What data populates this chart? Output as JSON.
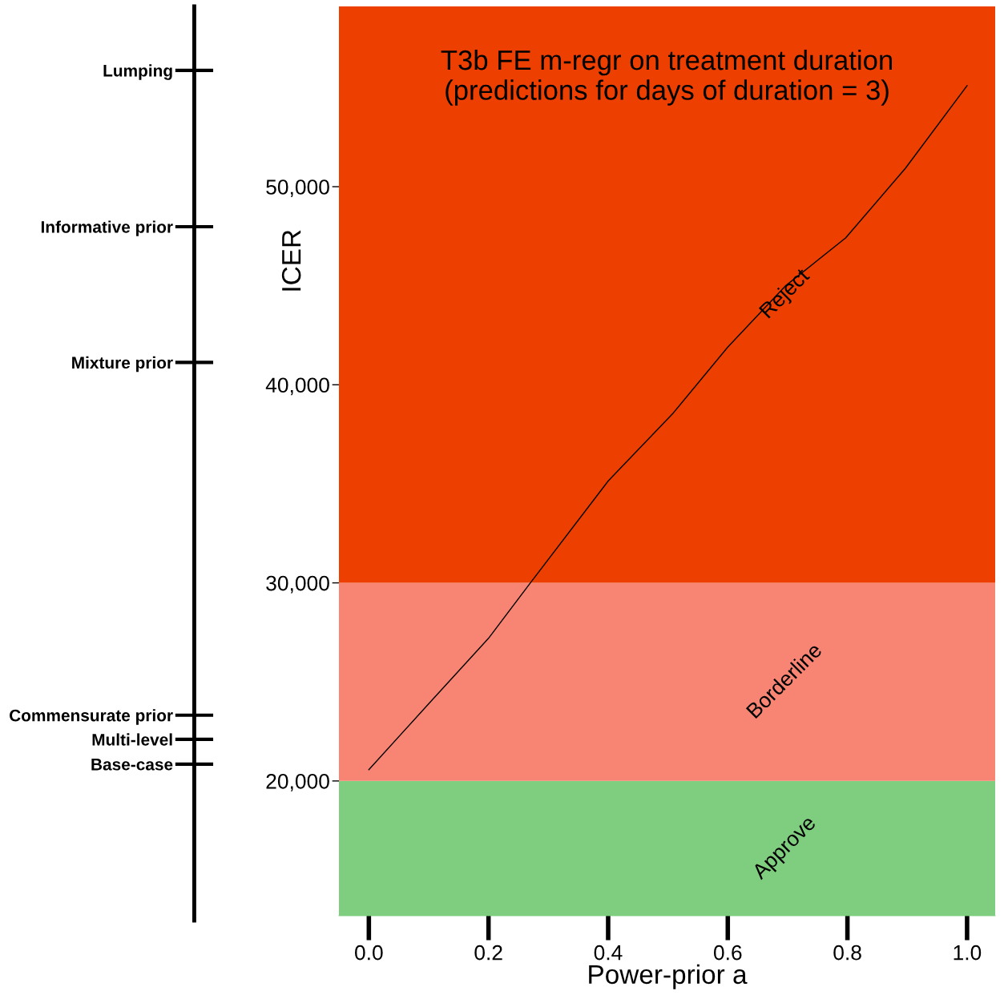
{
  "chart_data": {
    "type": "line",
    "title": "T3b FE m-regr on treatment duration\n(predictions for days of duration = 3)",
    "xlabel": "Power-prior a",
    "ylabel": "ICER",
    "x": [
      0,
      0.1,
      0.2,
      0.27,
      0.4,
      0.509,
      0.6,
      0.696,
      0.797,
      0.897,
      1.0
    ],
    "series": [
      {
        "color": "#000000",
        "values": [
          20570,
          23900,
          27200,
          30000,
          35140,
          38580,
          41900,
          44980,
          47410,
          50930,
          55100
        ]
      }
    ],
    "xlim": [
      -0.05,
      1.047
    ],
    "xticks": [
      {
        "value": 0,
        "label": "0.0"
      },
      0.2,
      0.4,
      0.6,
      0.8,
      {
        "value": 1,
        "label": "1.0"
      }
    ],
    "ylim": [
      13200,
      59100
    ],
    "yticks": [
      {
        "value": 20000,
        "label": "20,000"
      },
      {
        "value": 30000,
        "label": "30,000"
      },
      {
        "value": 40000,
        "label": "40,000"
      },
      {
        "value": 50000,
        "label": "50,000"
      }
    ],
    "ref_lines": [
      {
        "axis": "y",
        "value": 55870,
        "label": "Lumping"
      },
      {
        "axis": "y",
        "value": 47980,
        "label": "Informative prior"
      },
      {
        "axis": "y",
        "value": 41130,
        "label": "Mixture prior"
      },
      {
        "axis": "y",
        "value": 23320,
        "label": "Commensurate prior"
      },
      {
        "axis": "y",
        "value": 22100,
        "label": "Multi-level"
      },
      {
        "axis": "y",
        "value": 20850,
        "label": "Base-case"
      }
    ],
    "bands": [
      {
        "axis": "y",
        "from": 13200,
        "to": 20000,
        "label": "Approve",
        "color": "#7fcd7e"
      },
      {
        "axis": "y",
        "from": 20000,
        "to": 30000,
        "label": "Borderline",
        "color": "#f88473"
      },
      {
        "axis": "y",
        "from": 30000,
        "to": 59100,
        "label": "Reject",
        "color": "#ec3f00"
      }
    ],
    "grid": false,
    "legend": false,
    "marker": "none",
    "line_style": "solid"
  }
}
